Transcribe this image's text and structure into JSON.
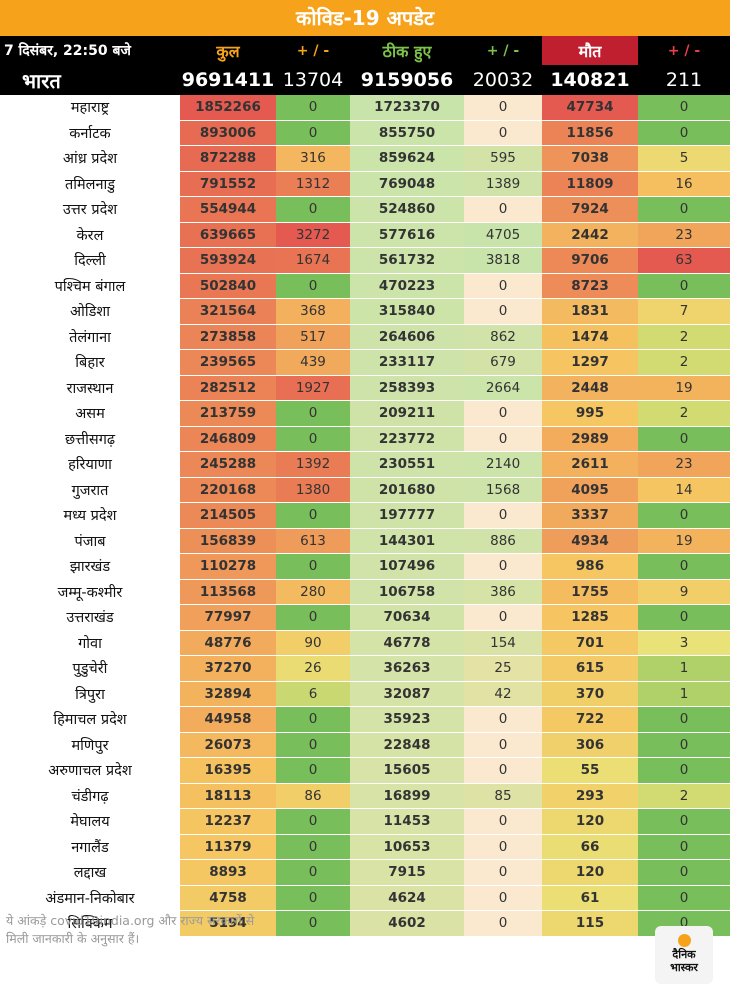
{
  "title": "कोविड-19 अपडेट",
  "header": {
    "date": "7 दिसंबर, 22:50 बजे",
    "confirmed": "कुल",
    "confirmed_delta": "+ / -",
    "recovered": "ठीक हुए",
    "recovered_delta": "+ / -",
    "deaths": "मौत",
    "deaths_delta": "+ / -"
  },
  "india": {
    "name": "भारत",
    "confirmed": "9691411",
    "confirmed_delta": "13704",
    "recovered": "9159056",
    "recovered_delta": "20032",
    "deaths": "140821",
    "deaths_delta": "211"
  },
  "states": [
    {
      "name": "महाराष्ट्र",
      "c": "1852266",
      "cd": "0",
      "r": "1723370",
      "rd": "0",
      "d": "47734",
      "dd": "0"
    },
    {
      "name": "कर्नाटक",
      "c": "893006",
      "cd": "0",
      "r": "855750",
      "rd": "0",
      "d": "11856",
      "dd": "0"
    },
    {
      "name": "आंध्र प्रदेश",
      "c": "872288",
      "cd": "316",
      "r": "859624",
      "rd": "595",
      "d": "7038",
      "dd": "5"
    },
    {
      "name": "तमिलनाडु",
      "c": "791552",
      "cd": "1312",
      "r": "769048",
      "rd": "1389",
      "d": "11809",
      "dd": "16"
    },
    {
      "name": "उत्तर प्रदेश",
      "c": "554944",
      "cd": "0",
      "r": "524860",
      "rd": "0",
      "d": "7924",
      "dd": "0"
    },
    {
      "name": "केरल",
      "c": "639665",
      "cd": "3272",
      "r": "577616",
      "rd": "4705",
      "d": "2442",
      "dd": "23"
    },
    {
      "name": "दिल्ली",
      "c": "593924",
      "cd": "1674",
      "r": "561732",
      "rd": "3818",
      "d": "9706",
      "dd": "63"
    },
    {
      "name": "पश्चिम बंगाल",
      "c": "502840",
      "cd": "0",
      "r": "470223",
      "rd": "0",
      "d": "8723",
      "dd": "0"
    },
    {
      "name": "ओडिशा",
      "c": "321564",
      "cd": "368",
      "r": "315840",
      "rd": "0",
      "d": "1831",
      "dd": "7"
    },
    {
      "name": "तेलंगाना",
      "c": "273858",
      "cd": "517",
      "r": "264606",
      "rd": "862",
      "d": "1474",
      "dd": "2"
    },
    {
      "name": "बिहार",
      "c": "239565",
      "cd": "439",
      "r": "233117",
      "rd": "679",
      "d": "1297",
      "dd": "2"
    },
    {
      "name": "राजस्थान",
      "c": "282512",
      "cd": "1927",
      "r": "258393",
      "rd": "2664",
      "d": "2448",
      "dd": "19"
    },
    {
      "name": "असम",
      "c": "213759",
      "cd": "0",
      "r": "209211",
      "rd": "0",
      "d": "995",
      "dd": "2"
    },
    {
      "name": "छत्तीसगढ़",
      "c": "246809",
      "cd": "0",
      "r": "223772",
      "rd": "0",
      "d": "2989",
      "dd": "0"
    },
    {
      "name": "हरियाणा",
      "c": "245288",
      "cd": "1392",
      "r": "230551",
      "rd": "2140",
      "d": "2611",
      "dd": "23"
    },
    {
      "name": "गुजरात",
      "c": "220168",
      "cd": "1380",
      "r": "201680",
      "rd": "1568",
      "d": "4095",
      "dd": "14"
    },
    {
      "name": "मध्य प्रदेश",
      "c": "214505",
      "cd": "0",
      "r": "197777",
      "rd": "0",
      "d": "3337",
      "dd": "0"
    },
    {
      "name": "पंजाब",
      "c": "156839",
      "cd": "613",
      "r": "144301",
      "rd": "886",
      "d": "4934",
      "dd": "19"
    },
    {
      "name": "झारखंड",
      "c": "110278",
      "cd": "0",
      "r": "107496",
      "rd": "0",
      "d": "986",
      "dd": "0"
    },
    {
      "name": "जम्मू-कश्मीर",
      "c": "113568",
      "cd": "280",
      "r": "106758",
      "rd": "386",
      "d": "1755",
      "dd": "9"
    },
    {
      "name": "उत्तराखंड",
      "c": "77997",
      "cd": "0",
      "r": "70634",
      "rd": "0",
      "d": "1285",
      "dd": "0"
    },
    {
      "name": "गोवा",
      "c": "48776",
      "cd": "90",
      "r": "46778",
      "rd": "154",
      "d": "701",
      "dd": "3"
    },
    {
      "name": "पुडुचेरी",
      "c": "37270",
      "cd": "26",
      "r": "36263",
      "rd": "25",
      "d": "615",
      "dd": "1"
    },
    {
      "name": "त्रिपुरा",
      "c": "32894",
      "cd": "6",
      "r": "32087",
      "rd": "42",
      "d": "370",
      "dd": "1"
    },
    {
      "name": "हिमाचल प्रदेश",
      "c": "44958",
      "cd": "0",
      "r": "35923",
      "rd": "0",
      "d": "722",
      "dd": "0"
    },
    {
      "name": "मणिपुर",
      "c": "26073",
      "cd": "0",
      "r": "22848",
      "rd": "0",
      "d": "306",
      "dd": "0"
    },
    {
      "name": "अरुणाचल प्रदेश",
      "c": "16395",
      "cd": "0",
      "r": "15605",
      "rd": "0",
      "d": "55",
      "dd": "0"
    },
    {
      "name": "चंडीगढ़",
      "c": "18113",
      "cd": "86",
      "r": "16899",
      "rd": "85",
      "d": "293",
      "dd": "2"
    },
    {
      "name": "मेघालय",
      "c": "12237",
      "cd": "0",
      "r": "11453",
      "rd": "0",
      "d": "120",
      "dd": "0"
    },
    {
      "name": "नगालैंड",
      "c": "11379",
      "cd": "0",
      "r": "10653",
      "rd": "0",
      "d": "66",
      "dd": "0"
    },
    {
      "name": "लद्दाख",
      "c": "8893",
      "cd": "0",
      "r": "7915",
      "rd": "0",
      "d": "120",
      "dd": "0"
    },
    {
      "name": "अंडमान-निकोबार",
      "c": "4758",
      "cd": "0",
      "r": "4624",
      "rd": "0",
      "d": "61",
      "dd": "0"
    },
    {
      "name": "सिक्किम",
      "c": "5194",
      "cd": "0",
      "r": "4602",
      "rd": "0",
      "d": "115",
      "dd": "0"
    }
  ],
  "colors": {
    "title_bg": "#f7a21b",
    "header_bg": "#000000",
    "deaths_header_bg": "#c01f2f",
    "confirmed_accent": "#f7a21b",
    "recovered_accent": "#7dc24b"
  },
  "footer": {
    "line1": "ये आंकड़े covid19india.org और राज्य सरकारों से",
    "line2": "मिली जानकारी के अनुसार हैं।"
  },
  "logo": {
    "line1": "दैनिक",
    "line2": "भास्कर",
    "icon": "sun-icon"
  }
}
